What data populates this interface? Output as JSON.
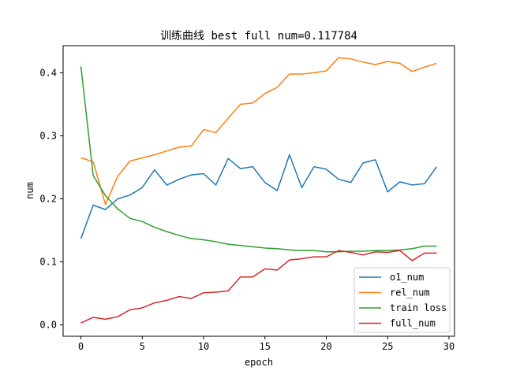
{
  "chart_data": {
    "type": "line",
    "title": "训练曲线 best full num=0.117784",
    "xlabel": "epoch",
    "ylabel": "num",
    "xlim": [
      -1.45,
      30.45
    ],
    "ylim": [
      -0.018,
      0.443
    ],
    "xticks": [
      0,
      5,
      10,
      15,
      20,
      25,
      30
    ],
    "xtick_labels": [
      "0",
      "5",
      "10",
      "15",
      "20",
      "25",
      "30"
    ],
    "yticks": [
      0.0,
      0.1,
      0.2,
      0.3,
      0.4
    ],
    "ytick_labels": [
      "0.0",
      "0.1",
      "0.2",
      "0.3",
      "0.4"
    ],
    "grid": false,
    "legend_position": "bottom-right",
    "x": [
      0,
      1,
      2,
      3,
      4,
      5,
      6,
      7,
      8,
      9,
      10,
      11,
      12,
      13,
      14,
      15,
      16,
      17,
      18,
      19,
      20,
      21,
      22,
      23,
      24,
      25,
      26,
      27,
      28,
      29
    ],
    "series": [
      {
        "name": "o1_num",
        "color": "#1f77b4",
        "values": [
          0.137,
          0.19,
          0.183,
          0.2,
          0.206,
          0.218,
          0.246,
          0.222,
          0.231,
          0.238,
          0.24,
          0.222,
          0.264,
          0.248,
          0.251,
          0.226,
          0.213,
          0.27,
          0.218,
          0.251,
          0.247,
          0.231,
          0.226,
          0.257,
          0.262,
          0.211,
          0.227,
          0.222,
          0.224,
          0.251
        ]
      },
      {
        "name": "rel_num",
        "color": "#ff7f0e",
        "values": [
          0.265,
          0.259,
          0.191,
          0.236,
          0.26,
          0.265,
          0.27,
          0.276,
          0.282,
          0.284,
          0.31,
          0.305,
          0.328,
          0.35,
          0.352,
          0.367,
          0.377,
          0.398,
          0.398,
          0.4,
          0.403,
          0.424,
          0.422,
          0.417,
          0.413,
          0.418,
          0.415,
          0.402,
          0.409,
          0.415
        ]
      },
      {
        "name": "train loss",
        "color": "#2ca02c",
        "values": [
          0.41,
          0.237,
          0.205,
          0.184,
          0.169,
          0.164,
          0.155,
          0.148,
          0.142,
          0.137,
          0.135,
          0.132,
          0.128,
          0.126,
          0.124,
          0.122,
          0.121,
          0.119,
          0.118,
          0.118,
          0.116,
          0.116,
          0.117,
          0.117,
          0.118,
          0.118,
          0.119,
          0.121,
          0.125,
          0.125
        ]
      },
      {
        "name": "full_num",
        "color": "#d62728",
        "values": [
          0.003,
          0.012,
          0.009,
          0.013,
          0.024,
          0.027,
          0.035,
          0.039,
          0.045,
          0.042,
          0.051,
          0.052,
          0.054,
          0.076,
          0.076,
          0.089,
          0.087,
          0.103,
          0.105,
          0.108,
          0.108,
          0.118,
          0.115,
          0.111,
          0.116,
          0.115,
          0.118,
          0.102,
          0.114,
          0.114
        ]
      }
    ]
  }
}
